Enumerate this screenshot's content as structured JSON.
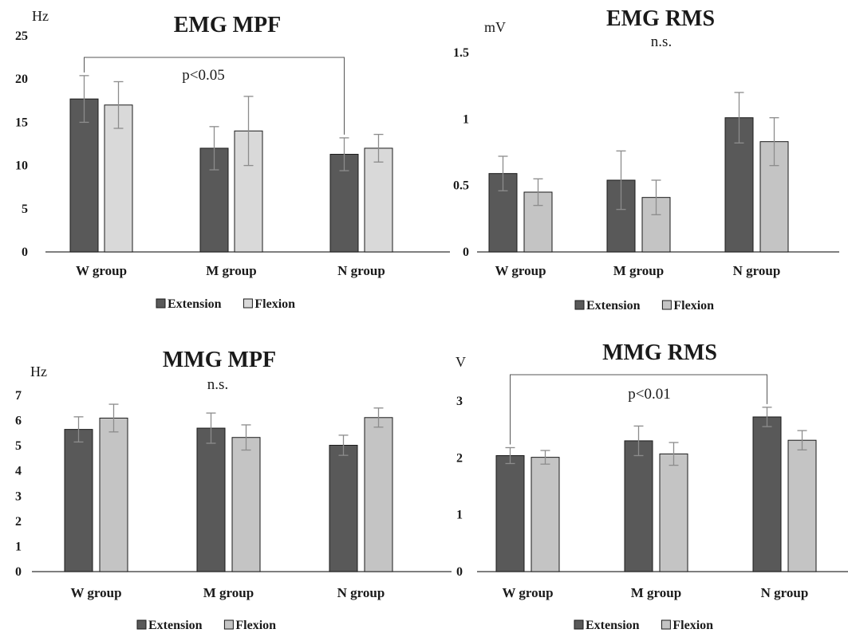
{
  "colors": {
    "extension": "#595959",
    "flexion_panel1": "#d9d9d9",
    "flexion": "#c4c4c4",
    "error_bar": "#8c8c8c",
    "axis": "#333333"
  },
  "chart_data": [
    {
      "type": "bar",
      "title": "EMG  MPF",
      "unit": "Hz",
      "categories": [
        "W group",
        "M group",
        "N group"
      ],
      "ylim": [
        0,
        25
      ],
      "yticks": [
        0,
        5,
        10,
        15,
        20,
        25
      ],
      "series": [
        {
          "name": "Extension",
          "values": [
            17.7,
            12.0,
            11.3
          ],
          "errors": [
            2.7,
            2.5,
            1.9
          ]
        },
        {
          "name": "Flexion",
          "values": [
            17.0,
            14.0,
            12.0
          ],
          "errors": [
            2.7,
            4.0,
            1.6
          ]
        }
      ],
      "annotation": "p<0.05",
      "bracket": [
        0,
        2
      ],
      "legend": "bottom"
    },
    {
      "type": "bar",
      "title": "EMG  RMS",
      "unit": "mV",
      "categories": [
        "W group",
        "M group",
        "N group"
      ],
      "ylim": [
        0,
        1.5
      ],
      "yticks": [
        0,
        0.5,
        1,
        1.5
      ],
      "series": [
        {
          "name": "Extension",
          "values": [
            0.59,
            0.54,
            1.01
          ],
          "errors": [
            0.13,
            0.22,
            0.19
          ]
        },
        {
          "name": "Flexion",
          "values": [
            0.45,
            0.41,
            0.83
          ],
          "errors": [
            0.1,
            0.13,
            0.18
          ]
        }
      ],
      "annotation": "n.s.",
      "legend": "bottom"
    },
    {
      "type": "bar",
      "title": "MMG  MPF",
      "unit": "Hz",
      "categories": [
        "W group",
        "M group",
        "N group"
      ],
      "ylim": [
        0,
        7
      ],
      "yticks": [
        0,
        1,
        2,
        3,
        4,
        5,
        6,
        7
      ],
      "series": [
        {
          "name": "Extension",
          "values": [
            5.65,
            5.7,
            5.02
          ],
          "errors": [
            0.5,
            0.6,
            0.4
          ]
        },
        {
          "name": "Flexion",
          "values": [
            6.1,
            5.33,
            6.12
          ],
          "errors": [
            0.55,
            0.5,
            0.38
          ]
        }
      ],
      "annotation": "n.s.",
      "legend": "bottom"
    },
    {
      "type": "bar",
      "title": "MMG  RMS",
      "unit": "V",
      "categories": [
        "W group",
        "M group",
        "N group"
      ],
      "ylim": [
        0,
        3
      ],
      "yticks": [
        0,
        1,
        2,
        3
      ],
      "series": [
        {
          "name": "Extension",
          "values": [
            2.04,
            2.3,
            2.72
          ],
          "errors": [
            0.14,
            0.26,
            0.17
          ]
        },
        {
          "name": "Flexion",
          "values": [
            2.01,
            2.07,
            2.31
          ],
          "errors": [
            0.12,
            0.2,
            0.17
          ]
        }
      ],
      "annotation": "p<0.01",
      "bracket": [
        0,
        2
      ],
      "legend": "bottom"
    }
  ]
}
